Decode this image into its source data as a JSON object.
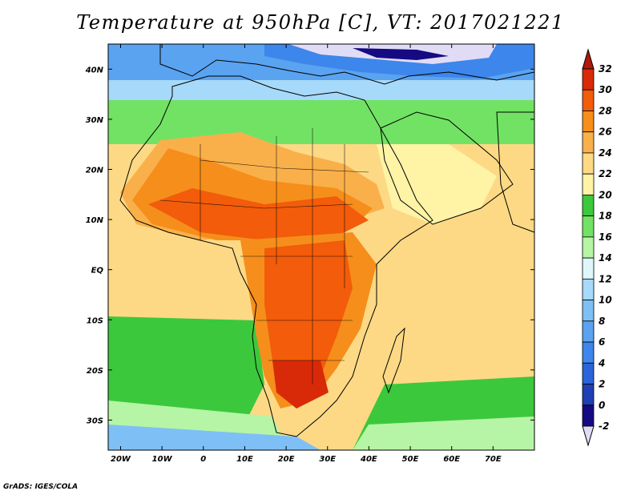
{
  "title": "Temperature at 950hPa [C], VT: 2017021221",
  "credit": "GrADS: IGES/COLA",
  "map": {
    "projection": "lat-lon",
    "lon_range": [
      -23,
      80
    ],
    "lat_range": [
      -36,
      45
    ],
    "lon_ticks": [
      "20W",
      "10W",
      "0",
      "10E",
      "20E",
      "30E",
      "40E",
      "50E",
      "60E",
      "70E"
    ],
    "lat_ticks": [
      "40N",
      "30N",
      "20N",
      "10N",
      "EQ",
      "10S",
      "20S",
      "30S"
    ],
    "field": "Temperature at 950hPa",
    "units": "C"
  },
  "colorbar": {
    "levels": [
      "-2",
      "0",
      "2",
      "4",
      "6",
      "8",
      "10",
      "12",
      "14",
      "16",
      "18",
      "20",
      "22",
      "24",
      "26",
      "28",
      "30",
      "32"
    ],
    "colors": [
      "#e1dcf5",
      "#160a82",
      "#1f3fb4",
      "#2a64d8",
      "#3d86eb",
      "#5aa3f0",
      "#7ec0f5",
      "#a6d9fa",
      "#dff7fa",
      "#b5f5a5",
      "#72e264",
      "#3cc83c",
      "#fff3a6",
      "#fdd985",
      "#f9b04a",
      "#f68e1b",
      "#f25c0a",
      "#d82a09",
      "#b01a08"
    ],
    "extend": "both"
  }
}
